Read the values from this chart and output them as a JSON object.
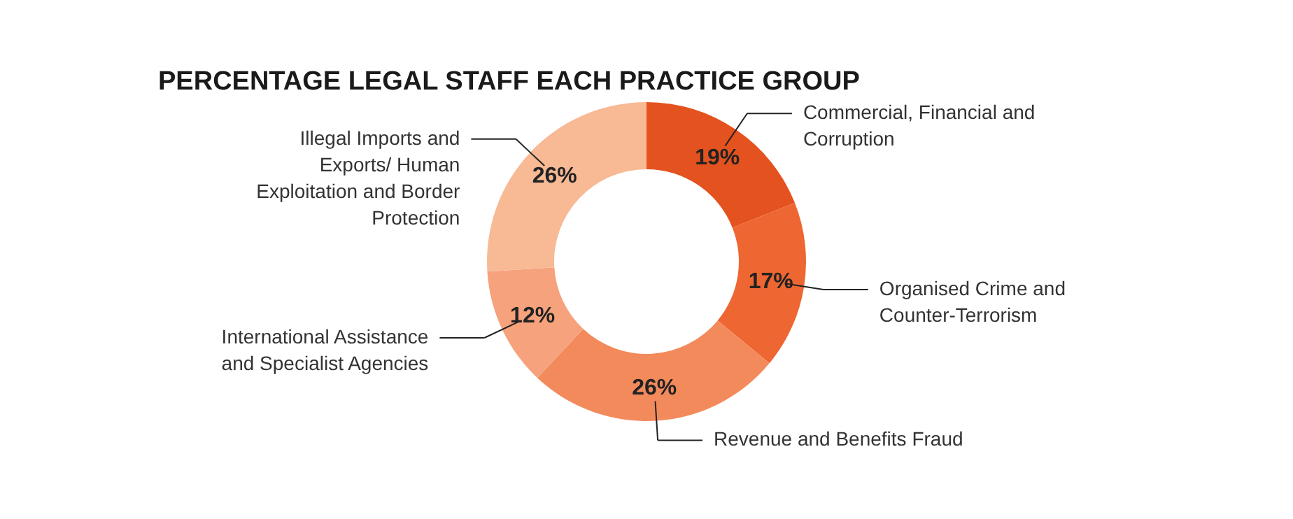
{
  "chart_data": {
    "type": "donut",
    "title": "PERCENTAGE LEGAL STAFF EACH PRACTICE GROUP",
    "categories": [
      "Commercial, Financial and Corruption",
      "Organised Crime and Counter-Terrorism",
      "Revenue and Benefits Fraud",
      "International Assistance and Specialist Agencies",
      "Illegal Imports and Exports/ Human Exploitation and Border Protection"
    ],
    "values": [
      19,
      17,
      26,
      12,
      26
    ],
    "value_labels": [
      "19%",
      "17%",
      "26%",
      "12%",
      "26%"
    ],
    "colors": [
      "#e4521f",
      "#ee6631",
      "#f38a5c",
      "#f6a27c",
      "#f8b995"
    ]
  }
}
